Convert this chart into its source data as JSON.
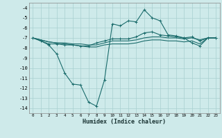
{
  "xlabel": "Humidex (Indice chaleur)",
  "xlim": [
    -0.5,
    23.5
  ],
  "ylim": [
    -14.5,
    -3.5
  ],
  "yticks": [
    -14,
    -13,
    -12,
    -11,
    -10,
    -9,
    -8,
    -7,
    -6,
    -5,
    -4
  ],
  "xticks": [
    0,
    1,
    2,
    3,
    4,
    5,
    6,
    7,
    8,
    9,
    10,
    11,
    12,
    13,
    14,
    15,
    16,
    17,
    18,
    19,
    20,
    21,
    22,
    23
  ],
  "bg_color": "#ceeaea",
  "grid_color": "#a8d0d0",
  "line_color": "#1a6b6b",
  "line1": [
    -7.0,
    -7.3,
    -7.7,
    -8.6,
    -10.5,
    -11.6,
    -11.7,
    -13.4,
    -13.8,
    -11.2,
    -5.6,
    -5.8,
    -5.3,
    -5.4,
    -4.2,
    -5.0,
    -5.3,
    -6.7,
    -6.8,
    -7.0,
    -7.5,
    -7.8,
    -7.0,
    -7.0
  ],
  "line2": [
    -7.0,
    -7.3,
    -7.6,
    -7.6,
    -7.7,
    -7.7,
    -7.8,
    -7.8,
    -7.5,
    -7.3,
    -7.1,
    -7.1,
    -7.1,
    -6.9,
    -6.5,
    -6.4,
    -6.7,
    -6.8,
    -6.9,
    -7.0,
    -6.9,
    -7.3,
    -7.0,
    -7.0
  ],
  "line3": [
    -7.0,
    -7.2,
    -7.4,
    -7.5,
    -7.5,
    -7.6,
    -7.6,
    -7.7,
    -7.7,
    -7.5,
    -7.3,
    -7.3,
    -7.3,
    -7.2,
    -7.0,
    -6.9,
    -6.9,
    -7.0,
    -7.0,
    -7.1,
    -7.0,
    -7.2,
    -7.0,
    -7.0
  ],
  "line4": [
    -7.0,
    -7.2,
    -7.4,
    -7.5,
    -7.6,
    -7.7,
    -7.8,
    -7.9,
    -7.9,
    -7.7,
    -7.6,
    -7.6,
    -7.6,
    -7.5,
    -7.3,
    -7.2,
    -7.2,
    -7.3,
    -7.3,
    -7.4,
    -7.3,
    -7.6,
    -7.0,
    -7.0
  ]
}
